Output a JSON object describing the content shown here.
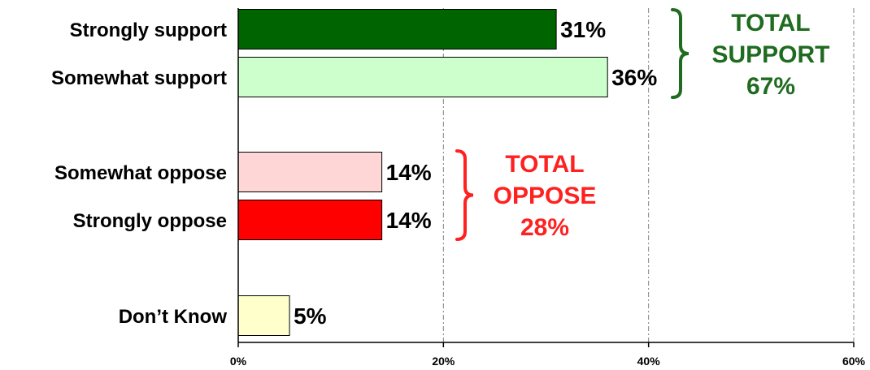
{
  "chart_data": {
    "type": "bar",
    "orientation": "horizontal",
    "categories": [
      "Strongly support",
      "Somewhat support",
      "Somewhat oppose",
      "Strongly oppose",
      "Don’t Know"
    ],
    "values": [
      31,
      36,
      14,
      14,
      5
    ],
    "data_labels": [
      "31%",
      "36%",
      "14%",
      "14%",
      "5%"
    ],
    "bar_colors": [
      "#006400",
      "#ccffcc",
      "#ffd6d6",
      "#ff0000",
      "#ffffcc"
    ],
    "xlim": [
      0,
      60
    ],
    "x_ticks": [
      0,
      20,
      40,
      60
    ],
    "x_tick_labels": [
      "0%",
      "20%",
      "40%",
      "60%"
    ],
    "gridlines": true,
    "title": "",
    "xlabel": "",
    "ylabel": "",
    "groups": [
      {
        "lines": [
          "TOTAL",
          "SUPPORT",
          "67%"
        ],
        "value": 67,
        "color": "#1f6b1f"
      },
      {
        "lines": [
          "TOTAL",
          "OPPOSE",
          "28%"
        ],
        "value": 28,
        "color": "#ff2020"
      }
    ]
  }
}
